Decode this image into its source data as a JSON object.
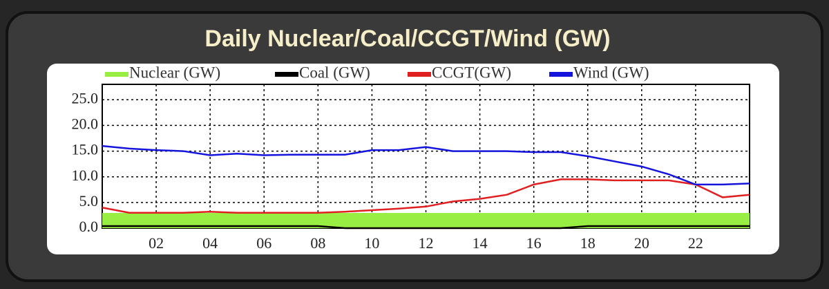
{
  "chart_data": {
    "type": "line",
    "title": "Daily Nuclear/Coal/CCGT/Wind (GW)",
    "x": [
      0,
      1,
      2,
      3,
      4,
      5,
      6,
      7,
      8,
      9,
      10,
      11,
      12,
      13,
      14,
      15,
      16,
      17,
      18,
      19,
      20,
      21,
      22,
      23,
      24
    ],
    "series": [
      {
        "name": "Nuclear (GW)",
        "color": "#99ee44",
        "area": true,
        "values": [
          2.8,
          2.8,
          2.8,
          2.8,
          2.8,
          2.8,
          2.8,
          2.8,
          2.8,
          2.8,
          2.8,
          2.8,
          2.8,
          2.8,
          2.8,
          2.8,
          2.8,
          2.8,
          2.8,
          2.8,
          2.8,
          2.8,
          2.8,
          2.8,
          2.8
        ]
      },
      {
        "name": "Coal (GW)",
        "color": "#000000",
        "values": [
          0.4,
          0.4,
          0.4,
          0.4,
          0.4,
          0.4,
          0.4,
          0.4,
          0.4,
          0,
          0,
          0,
          0,
          0,
          0,
          0,
          0,
          0,
          0.4,
          0.4,
          0.4,
          0.4,
          0.4,
          0.4,
          0.4
        ]
      },
      {
        "name": "CCGT(GW)",
        "color": "#e02020",
        "values": [
          4,
          3,
          3,
          3,
          3.2,
          3,
          3,
          3,
          3,
          3.2,
          3.5,
          3.8,
          4.2,
          5.2,
          5.7,
          6.5,
          8.5,
          9.5,
          9.5,
          9.3,
          9.3,
          9.3,
          8.5,
          6,
          6.5
        ]
      },
      {
        "name": "Wind (GW)",
        "color": "#1414dd",
        "values": [
          16,
          15.5,
          15.2,
          15,
          14.2,
          14.5,
          14.2,
          14.3,
          14.3,
          14.3,
          15.2,
          15.2,
          15.8,
          15,
          15,
          15,
          14.8,
          14.8,
          14,
          13,
          12,
          10.5,
          8.5,
          8.5,
          8.7
        ]
      }
    ],
    "xlim": [
      0,
      24
    ],
    "xticks": [
      {
        "value": 2,
        "label": "02"
      },
      {
        "value": 4,
        "label": "04"
      },
      {
        "value": 6,
        "label": "06"
      },
      {
        "value": 8,
        "label": "08"
      },
      {
        "value": 10,
        "label": "10"
      },
      {
        "value": 12,
        "label": "12"
      },
      {
        "value": 14,
        "label": "14"
      },
      {
        "value": 16,
        "label": "16"
      },
      {
        "value": 18,
        "label": "18"
      },
      {
        "value": 20,
        "label": "20"
      },
      {
        "value": 22,
        "label": "22"
      }
    ],
    "ylim": [
      0,
      28
    ],
    "yticks": [
      {
        "value": 0,
        "label": "0.0"
      },
      {
        "value": 5,
        "label": "5.0"
      },
      {
        "value": 10,
        "label": "10.0"
      },
      {
        "value": 15,
        "label": "15.0"
      },
      {
        "value": 20,
        "label": "20.0"
      },
      {
        "value": 25,
        "label": "25.0"
      }
    ],
    "grid": true
  }
}
